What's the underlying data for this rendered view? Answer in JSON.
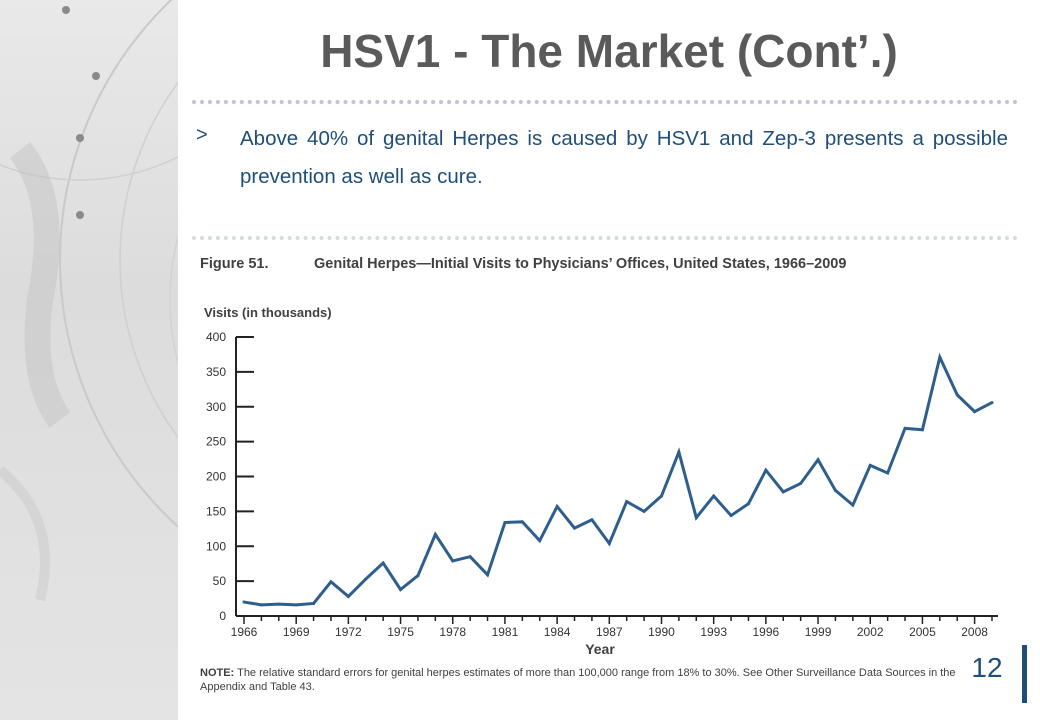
{
  "slide": {
    "title": "HSV1 - The Market (Cont’.)",
    "bullet_marker": ">",
    "bullet_text": "Above 40% of genital Herpes is caused by HSV1 and Zep-3 presents a possible prevention as well as cure.",
    "page_number": "12"
  },
  "figure": {
    "label": "Figure 51.",
    "title": "Genital Herpes—Initial Visits to Physicians’ Offices, United States, 1966–2009",
    "note_label": "NOTE:",
    "note_text": "The relative standard errors for genital herpes estimates of more than 100,000 range from 18% to 30%. See Other Surveillance Data Sources in the Appendix and Table 43."
  },
  "chart_data": {
    "type": "line",
    "ylabel": "Visits (in thousands)",
    "xlabel": "Year",
    "ylim": [
      0,
      400
    ],
    "xlim": [
      1966,
      2009
    ],
    "yticks": [
      0,
      50,
      100,
      150,
      200,
      250,
      300,
      350,
      400
    ],
    "xtick_labels": [
      "1966",
      "1969",
      "1972",
      "1975",
      "1978",
      "1981",
      "1984",
      "1987",
      "1990",
      "1993",
      "1996",
      "1999",
      "2002",
      "2005",
      "2008"
    ],
    "series_color": "#2e5f8c",
    "x": [
      1966,
      1967,
      1968,
      1969,
      1970,
      1971,
      1972,
      1973,
      1974,
      1975,
      1976,
      1977,
      1978,
      1979,
      1980,
      1981,
      1982,
      1983,
      1984,
      1985,
      1986,
      1987,
      1988,
      1989,
      1990,
      1991,
      1992,
      1993,
      1994,
      1995,
      1996,
      1997,
      1998,
      1999,
      2000,
      2001,
      2002,
      2003,
      2004,
      2005,
      2006,
      2007,
      2008,
      2009
    ],
    "values": [
      20,
      16,
      17,
      16,
      18,
      49,
      28,
      53,
      76,
      38,
      58,
      117,
      79,
      85,
      59,
      134,
      135,
      108,
      157,
      126,
      138,
      104,
      164,
      150,
      172,
      235,
      141,
      172,
      144,
      161,
      209,
      178,
      190,
      224,
      180,
      159,
      216,
      205,
      269,
      267,
      371,
      317,
      293,
      306
    ]
  }
}
